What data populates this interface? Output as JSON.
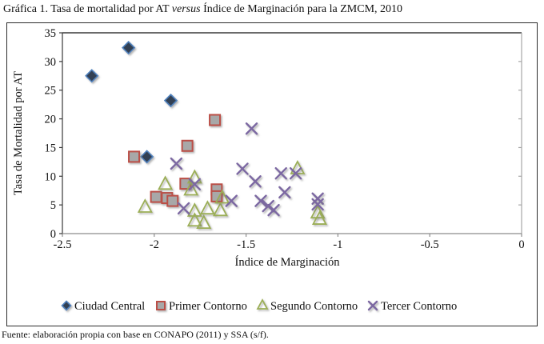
{
  "title": {
    "prefix": "Gráfica 1. Tasa de mortalidad por AT ",
    "italic": "versus",
    "suffix": " Índice de Marginación para la ZMCM, 2010"
  },
  "footer": {
    "text": "Fuente: elaboración propia con base en CONAPO (2011) y SSA (s/f)."
  },
  "colors": {
    "diamond_fill": "#333f52",
    "diamond_stroke": "#4f81bd",
    "square_fill": "#a8a8a8",
    "square_stroke": "#bb4f46",
    "triangle_stroke": "#9bae56",
    "x_stroke": "#7b68a2",
    "axis_dark": "#3a3a3a",
    "axis_light": "#a6a6a6"
  },
  "chart_data": {
    "type": "scatter",
    "title": "Gráfica 1. Tasa de mortalidad por AT versus Índice de Marginación para la ZMCM, 2010",
    "xlabel": "Índice de Marginación",
    "ylabel": "Tasa de Mortalidad por AT",
    "xlim": [
      -2.5,
      0
    ],
    "ylim": [
      0,
      35
    ],
    "xticks": [
      -2.5,
      -2,
      -1.5,
      -1,
      -0.5,
      0
    ],
    "xtick_labels": [
      "-2.5",
      "-2",
      "-1.5",
      "-1",
      "-0.5",
      "0"
    ],
    "yticks": [
      0,
      5,
      10,
      15,
      20,
      25,
      30,
      35
    ],
    "ytick_labels": [
      "0",
      "5",
      "10",
      "15",
      "20",
      "25",
      "30",
      "35"
    ],
    "grid": false,
    "legend_position": "bottom",
    "series": [
      {
        "name": "Ciudad Central",
        "marker": "diamond",
        "points": [
          [
            -2.14,
            32.4
          ],
          [
            -2.34,
            27.5
          ],
          [
            -1.91,
            23.2
          ],
          [
            -2.04,
            13.4
          ]
        ]
      },
      {
        "name": "Primer Contorno",
        "marker": "square",
        "points": [
          [
            -2.11,
            13.4
          ],
          [
            -1.82,
            15.3
          ],
          [
            -1.67,
            19.8
          ],
          [
            -1.83,
            8.7
          ],
          [
            -1.99,
            6.4
          ],
          [
            -1.93,
            6.2
          ],
          [
            -1.9,
            5.7
          ],
          [
            -1.66,
            7.7
          ],
          [
            -1.66,
            6.5
          ]
        ]
      },
      {
        "name": "Segundo Contorno",
        "marker": "triangle",
        "points": [
          [
            -2.05,
            4.6
          ],
          [
            -1.94,
            8.6
          ],
          [
            -1.8,
            7.6
          ],
          [
            -1.78,
            9.7
          ],
          [
            -1.78,
            3.9
          ],
          [
            -1.78,
            2.2
          ],
          [
            -1.73,
            1.8
          ],
          [
            -1.71,
            4.3
          ],
          [
            -1.64,
            4.0
          ],
          [
            -1.63,
            6.2
          ],
          [
            -1.22,
            11.3
          ],
          [
            -1.11,
            3.6
          ],
          [
            -1.1,
            2.5
          ]
        ]
      },
      {
        "name": "Tercer Contorno",
        "marker": "x",
        "points": [
          [
            -1.47,
            18.3
          ],
          [
            -1.88,
            12.2
          ],
          [
            -1.52,
            11.3
          ],
          [
            -1.31,
            10.5
          ],
          [
            -1.23,
            10.5
          ],
          [
            -1.45,
            9.1
          ],
          [
            -1.78,
            8.6
          ],
          [
            -1.29,
            7.2
          ],
          [
            -1.58,
            5.7
          ],
          [
            -1.42,
            5.7
          ],
          [
            -1.38,
            4.8
          ],
          [
            -1.35,
            4.1
          ],
          [
            -1.84,
            4.4
          ],
          [
            -1.11,
            6.1
          ],
          [
            -1.11,
            5.1
          ]
        ]
      }
    ]
  }
}
